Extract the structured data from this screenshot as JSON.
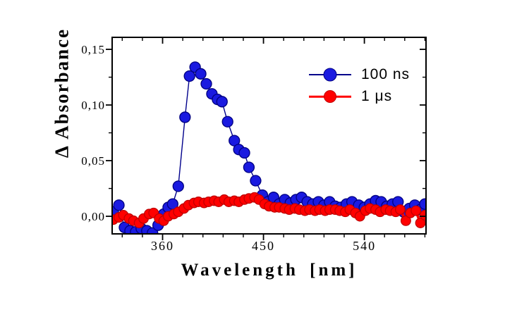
{
  "colors": {
    "background": "#ffffff",
    "frame": "#000000",
    "text": "#000000",
    "blue_marker": "#1a1ae0",
    "blue_edge": "#000080",
    "blue_line": "#00008b",
    "red_marker": "#ff0000",
    "red_edge": "#c00000",
    "red_line": "#ff0000"
  },
  "chart_data": {
    "type": "scatter",
    "title": "",
    "xlabel": "Wavelength [nm]",
    "ylabel": "Δ Absorbance",
    "xlim": [
      315,
      595
    ],
    "ylim": [
      -0.0158,
      0.1608
    ],
    "grid": false,
    "legend_position": "upper right inside",
    "x_ticks_major": [
      360,
      450,
      540
    ],
    "x_tick_labels": [
      "360",
      "450",
      "540"
    ],
    "x_minor_step": 18,
    "y_ticks_major": [
      0,
      0.05,
      0.1,
      0.15
    ],
    "y_tick_labels": [
      "0,00",
      "0,05",
      "0,10",
      "0,15"
    ],
    "y_minor_step": 0.025,
    "series": [
      {
        "name": "100 ns",
        "color": "#1a1ae0",
        "edge_color": "#000080",
        "line_color": "#00008b",
        "line_width": 1.4,
        "marker_radius": 7.5,
        "x": [
          316,
          321,
          326,
          331,
          336,
          341,
          346,
          351,
          356,
          361,
          365,
          369,
          374,
          380,
          384,
          389,
          394,
          399,
          404,
          409,
          413,
          418,
          424,
          428,
          433,
          437,
          443,
          449,
          454,
          459,
          464,
          469,
          474,
          479,
          484,
          489,
          494,
          499,
          504,
          509,
          514,
          519,
          524,
          529,
          535,
          540,
          545,
          550,
          555,
          560,
          565,
          570,
          575,
          580,
          585,
          590,
          594
        ],
        "y": [
          0.004,
          0.01,
          -0.01,
          -0.013,
          -0.014,
          -0.011,
          -0.013,
          -0.015,
          -0.008,
          0.002,
          0.008,
          0.011,
          0.027,
          0.089,
          0.126,
          0.134,
          0.128,
          0.119,
          0.11,
          0.105,
          0.103,
          0.085,
          0.068,
          0.06,
          0.057,
          0.044,
          0.032,
          0.019,
          0.013,
          0.017,
          0.011,
          0.015,
          0.012,
          0.015,
          0.017,
          0.013,
          0.011,
          0.013,
          0.01,
          0.013,
          0.009,
          0.008,
          0.011,
          0.013,
          0.01,
          0.008,
          0.011,
          0.014,
          0.013,
          0.009,
          0.011,
          0.013,
          0.004,
          0.007,
          0.01,
          0.006,
          0.011
        ]
      },
      {
        "name": "1 μs",
        "color": "#ff0000",
        "edge_color": "#c00000",
        "line_color": "#ff0000",
        "line_width": 4,
        "marker_radius": 6.8,
        "x": [
          316,
          321,
          325,
          330,
          334,
          339,
          343,
          348,
          352,
          357,
          361,
          365,
          370,
          374,
          379,
          383,
          388,
          392,
          397,
          401,
          406,
          410,
          415,
          419,
          424,
          428,
          433,
          437,
          442,
          446,
          451,
          455,
          460,
          464,
          469,
          473,
          478,
          482,
          487,
          491,
          496,
          500,
          505,
          509,
          514,
          518,
          523,
          527,
          532,
          536,
          541,
          545,
          550,
          554,
          559,
          563,
          568,
          572,
          577,
          581,
          586,
          590,
          594
        ],
        "y": [
          -0.003,
          -0.001,
          0.001,
          -0.002,
          -0.004,
          -0.006,
          -0.002,
          0.002,
          0.003,
          -0.002,
          -0.004,
          0.0,
          0.002,
          0.004,
          0.007,
          0.01,
          0.012,
          0.013,
          0.012,
          0.013,
          0.014,
          0.013,
          0.015,
          0.013,
          0.014,
          0.013,
          0.015,
          0.016,
          0.017,
          0.015,
          0.011,
          0.009,
          0.008,
          0.008,
          0.007,
          0.006,
          0.007,
          0.006,
          0.005,
          0.006,
          0.005,
          0.006,
          0.005,
          0.006,
          0.006,
          0.005,
          0.004,
          0.006,
          0.003,
          0.0,
          0.005,
          0.007,
          0.006,
          0.004,
          0.006,
          0.005,
          0.004,
          0.006,
          -0.004,
          0.003,
          0.005,
          -0.006,
          0.001
        ]
      }
    ]
  },
  "legend": {
    "items": [
      {
        "label": "100 ns"
      },
      {
        "label": "1 μs"
      }
    ]
  }
}
